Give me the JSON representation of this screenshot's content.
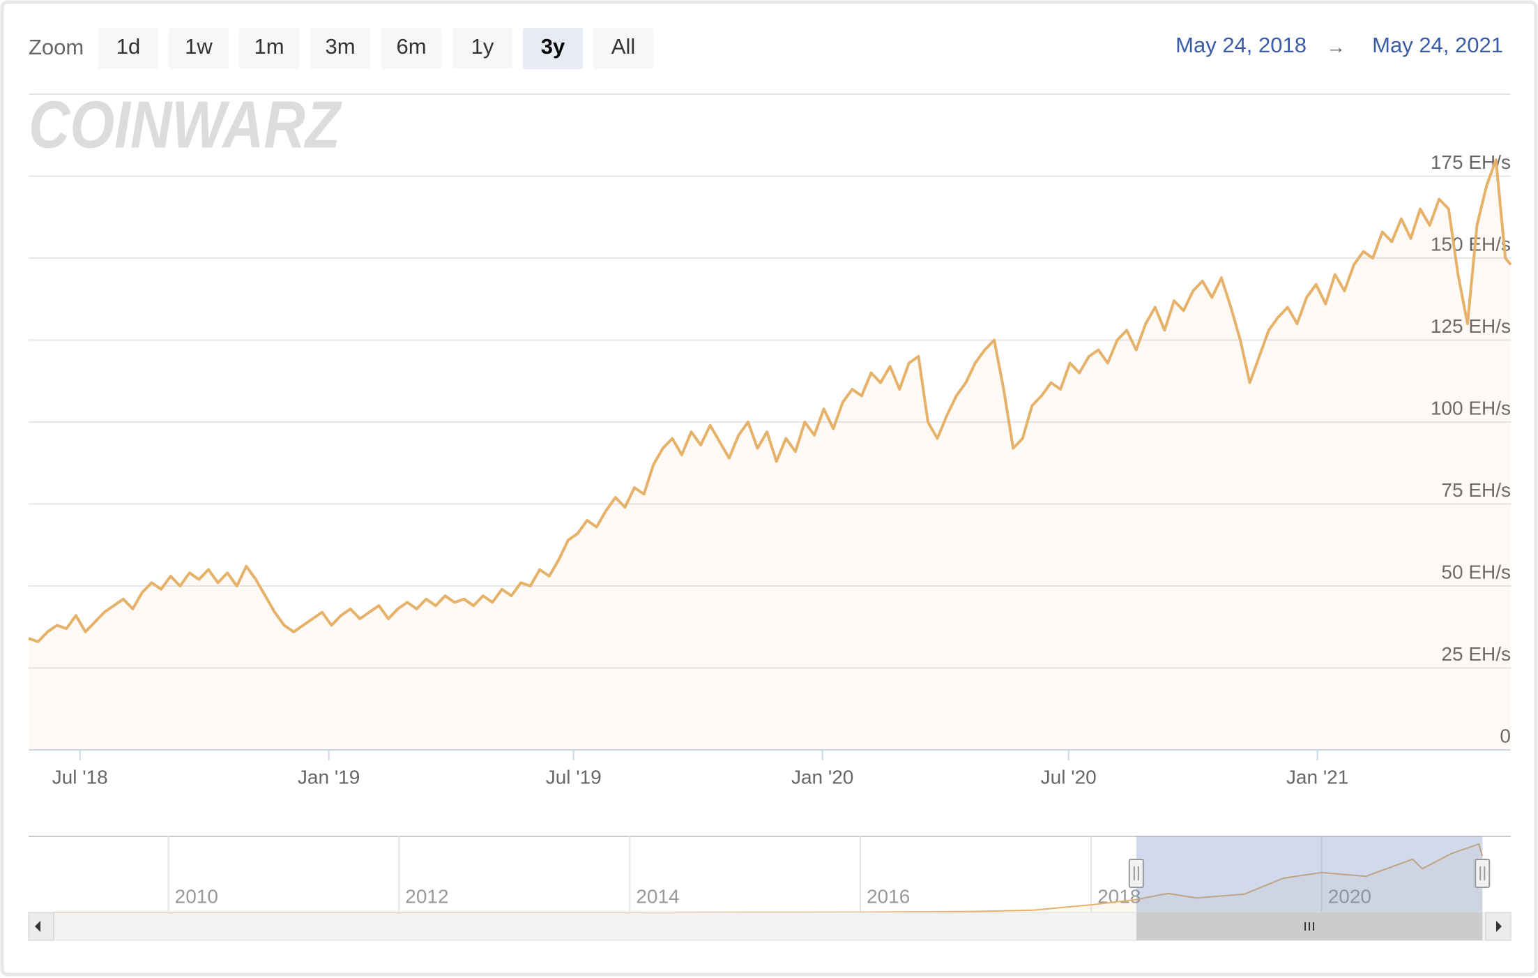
{
  "zoom_label": "Zoom",
  "zoom_buttons": [
    "1d",
    "1w",
    "1m",
    "3m",
    "6m",
    "1y",
    "3y",
    "All"
  ],
  "selected_zoom": 6,
  "range": {
    "from": "May 24, 2018",
    "arrow": "→",
    "to": "May 24, 2021"
  },
  "watermark": "COINWARZ",
  "chart_data": {
    "type": "line",
    "color": "#e6b168",
    "grid": true,
    "x": [
      "2018-05-24",
      "2018-05-31",
      "2018-06-07",
      "2018-06-14",
      "2018-06-21",
      "2018-06-28",
      "2018-07-05",
      "2018-07-12",
      "2018-07-19",
      "2018-07-26",
      "2018-08-02",
      "2018-08-09",
      "2018-08-16",
      "2018-08-23",
      "2018-08-30",
      "2018-09-06",
      "2018-09-13",
      "2018-09-20",
      "2018-09-27",
      "2018-10-04",
      "2018-10-11",
      "2018-10-18",
      "2018-10-25",
      "2018-11-01",
      "2018-11-08",
      "2018-11-15",
      "2018-11-22",
      "2018-11-29",
      "2018-12-06",
      "2018-12-13",
      "2018-12-20",
      "2018-12-27",
      "2019-01-03",
      "2019-01-10",
      "2019-01-17",
      "2019-01-24",
      "2019-01-31",
      "2019-02-07",
      "2019-02-14",
      "2019-02-21",
      "2019-02-28",
      "2019-03-07",
      "2019-03-14",
      "2019-03-21",
      "2019-03-28",
      "2019-04-04",
      "2019-04-11",
      "2019-04-18",
      "2019-04-25",
      "2019-05-02",
      "2019-05-09",
      "2019-05-16",
      "2019-05-23",
      "2019-05-30",
      "2019-06-06",
      "2019-06-13",
      "2019-06-20",
      "2019-06-27",
      "2019-07-04",
      "2019-07-11",
      "2019-07-18",
      "2019-07-25",
      "2019-08-01",
      "2019-08-08",
      "2019-08-15",
      "2019-08-22",
      "2019-08-29",
      "2019-09-05",
      "2019-09-12",
      "2019-09-19",
      "2019-09-26",
      "2019-10-03",
      "2019-10-10",
      "2019-10-17",
      "2019-10-24",
      "2019-10-31",
      "2019-11-07",
      "2019-11-14",
      "2019-11-21",
      "2019-11-28",
      "2019-12-05",
      "2019-12-12",
      "2019-12-19",
      "2019-12-26",
      "2020-01-02",
      "2020-01-09",
      "2020-01-16",
      "2020-01-23",
      "2020-01-30",
      "2020-02-06",
      "2020-02-13",
      "2020-02-20",
      "2020-02-27",
      "2020-03-05",
      "2020-03-12",
      "2020-03-19",
      "2020-03-26",
      "2020-04-02",
      "2020-04-09",
      "2020-04-16",
      "2020-04-23",
      "2020-04-30",
      "2020-05-07",
      "2020-05-14",
      "2020-05-21",
      "2020-05-28",
      "2020-06-04",
      "2020-06-11",
      "2020-06-18",
      "2020-06-25",
      "2020-07-02",
      "2020-07-09",
      "2020-07-16",
      "2020-07-23",
      "2020-07-30",
      "2020-08-06",
      "2020-08-13",
      "2020-08-20",
      "2020-08-27",
      "2020-09-03",
      "2020-09-10",
      "2020-09-17",
      "2020-09-24",
      "2020-10-01",
      "2020-10-08",
      "2020-10-15",
      "2020-10-22",
      "2020-10-29",
      "2020-11-05",
      "2020-11-12",
      "2020-11-19",
      "2020-11-26",
      "2020-12-03",
      "2020-12-10",
      "2020-12-17",
      "2020-12-24",
      "2020-12-31",
      "2021-01-07",
      "2021-01-14",
      "2021-01-21",
      "2021-01-28",
      "2021-02-04",
      "2021-02-11",
      "2021-02-18",
      "2021-02-25",
      "2021-03-04",
      "2021-03-11",
      "2021-03-18",
      "2021-03-25",
      "2021-04-01",
      "2021-04-08",
      "2021-04-15",
      "2021-04-22",
      "2021-04-29",
      "2021-05-06",
      "2021-05-13",
      "2021-05-20",
      "2021-05-24"
    ],
    "values": [
      34,
      33,
      36,
      38,
      37,
      41,
      36,
      39,
      42,
      44,
      46,
      43,
      48,
      51,
      49,
      53,
      50,
      54,
      52,
      55,
      51,
      54,
      50,
      56,
      52,
      47,
      42,
      38,
      36,
      38,
      40,
      42,
      38,
      41,
      43,
      40,
      42,
      44,
      40,
      43,
      45,
      43,
      46,
      44,
      47,
      45,
      46,
      44,
      47,
      45,
      49,
      47,
      51,
      50,
      55,
      53,
      58,
      64,
      66,
      70,
      68,
      73,
      77,
      74,
      80,
      78,
      87,
      92,
      95,
      90,
      97,
      93,
      99,
      94,
      89,
      96,
      100,
      92,
      97,
      88,
      95,
      91,
      100,
      96,
      104,
      98,
      106,
      110,
      108,
      115,
      112,
      117,
      110,
      118,
      120,
      100,
      95,
      102,
      108,
      112,
      118,
      122,
      125,
      110,
      92,
      95,
      105,
      108,
      112,
      110,
      118,
      115,
      120,
      122,
      118,
      125,
      128,
      122,
      130,
      135,
      128,
      137,
      134,
      140,
      143,
      138,
      144,
      135,
      125,
      112,
      120,
      128,
      132,
      135,
      130,
      138,
      142,
      136,
      145,
      140,
      148,
      152,
      150,
      158,
      155,
      162,
      156,
      165,
      160,
      168,
      165,
      145,
      130,
      160,
      172,
      180,
      150,
      148
    ],
    "xlim": [
      "2018-05-24",
      "2021-05-24"
    ],
    "xticks": [
      {
        "value": "2018-07-01",
        "label": "Jul '18"
      },
      {
        "value": "2019-01-01",
        "label": "Jan '19"
      },
      {
        "value": "2019-07-01",
        "label": "Jul '19"
      },
      {
        "value": "2020-01-01",
        "label": "Jan '20"
      },
      {
        "value": "2020-07-01",
        "label": "Jul '20"
      },
      {
        "value": "2021-01-01",
        "label": "Jan '21"
      }
    ],
    "ylim": [
      0,
      200
    ],
    "yticks": [
      0,
      {
        "value": 25,
        "label": "25 EH/s"
      },
      {
        "value": 50,
        "label": "50 EH/s"
      },
      {
        "value": 75,
        "label": "75 EH/s"
      },
      {
        "value": 100,
        "label": "100 EH/s"
      },
      {
        "value": 125,
        "label": "125 EH/s"
      },
      {
        "value": 150,
        "label": "150 EH/s"
      },
      {
        "value": 175,
        "label": "175 EH/s"
      }
    ],
    "navigator": {
      "x": [
        "2009-01-03",
        "2011-01-01",
        "2013-01-01",
        "2014-01-01",
        "2015-01-01",
        "2016-01-01",
        "2017-01-01",
        "2017-07-01",
        "2018-01-01",
        "2018-05-24",
        "2018-09-01",
        "2018-12-01",
        "2019-05-01",
        "2019-09-01",
        "2020-01-01",
        "2020-05-20",
        "2020-10-15",
        "2020-11-15",
        "2021-02-15",
        "2021-05-13",
        "2021-05-24"
      ],
      "values": [
        0,
        0,
        0,
        0.01,
        0.3,
        0.8,
        2.5,
        6,
        20,
        34,
        50,
        38,
        48,
        90,
        105,
        95,
        140,
        115,
        155,
        180,
        148
      ],
      "xlim": [
        "2008-10-15",
        "2021-08-22"
      ],
      "ylim": [
        0,
        200
      ],
      "xticks": [
        {
          "value": "2010-01-01",
          "label": "2010"
        },
        {
          "value": "2012-01-01",
          "label": "2012"
        },
        {
          "value": "2014-01-01",
          "label": "2014"
        },
        {
          "value": "2016-01-01",
          "label": "2016"
        },
        {
          "value": "2018-01-01",
          "label": "2018"
        },
        {
          "value": "2020-01-01",
          "label": "2020"
        }
      ]
    }
  }
}
